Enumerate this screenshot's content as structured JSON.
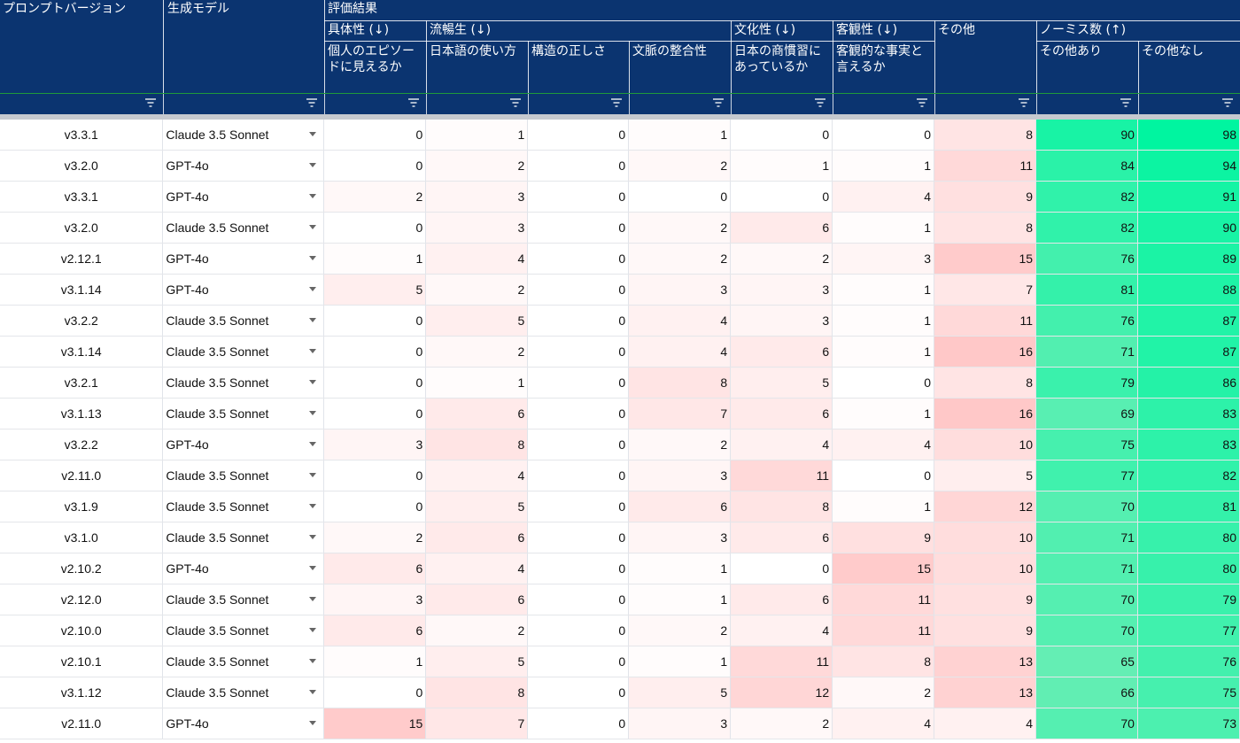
{
  "header": {
    "col_version": "プロンプトバージョン",
    "col_model": "生成モデル",
    "group_eval": "評価結果",
    "cat_specificity": "具体性 (↓)",
    "cat_fluency": "流暢生 (↓)",
    "cat_culture": "文化性 (↓)",
    "cat_objectivity": "客観性 (↓)",
    "cat_other": "その他",
    "cat_nomiss": "ノーミス数 (↑)",
    "sub_episode": "個人のエピソードに見えるか",
    "sub_japanese": "日本語の使い方",
    "sub_structure": "構造の正しさ",
    "sub_context": "文脈の整合性",
    "sub_business": "日本の商慣習にあっているか",
    "sub_fact": "客観的な事実と言えるか",
    "sub_with_other": "その他あり",
    "sub_without_other": "その他なし"
  },
  "colors": {
    "header_bg": "#0b3470",
    "red_scale_max": "#f9c4c4",
    "green_scale_low": "#5cf0b4",
    "green_scale_high": "#00f5a0"
  },
  "icons": {
    "filter": "filter-icon",
    "dropdown": "dropdown-arrow-icon"
  },
  "rows": [
    {
      "version": "v3.3.1",
      "model": "Claude 3.5 Sonnet",
      "episode": 0,
      "japanese": 1,
      "structure": 0,
      "context": 1,
      "business": 0,
      "fact": 0,
      "other": 8,
      "with_other": 90,
      "without_other": 98
    },
    {
      "version": "v3.2.0",
      "model": "GPT-4o",
      "episode": 0,
      "japanese": 2,
      "structure": 0,
      "context": 2,
      "business": 1,
      "fact": 1,
      "other": 11,
      "with_other": 84,
      "without_other": 94
    },
    {
      "version": "v3.3.1",
      "model": "GPT-4o",
      "episode": 2,
      "japanese": 3,
      "structure": 0,
      "context": 0,
      "business": 0,
      "fact": 4,
      "other": 9,
      "with_other": 82,
      "without_other": 91
    },
    {
      "version": "v3.2.0",
      "model": "Claude 3.5 Sonnet",
      "episode": 0,
      "japanese": 3,
      "structure": 0,
      "context": 2,
      "business": 6,
      "fact": 1,
      "other": 8,
      "with_other": 82,
      "without_other": 90
    },
    {
      "version": "v2.12.1",
      "model": "GPT-4o",
      "episode": 1,
      "japanese": 4,
      "structure": 0,
      "context": 2,
      "business": 2,
      "fact": 3,
      "other": 15,
      "with_other": 76,
      "without_other": 89
    },
    {
      "version": "v3.1.14",
      "model": "GPT-4o",
      "episode": 5,
      "japanese": 2,
      "structure": 0,
      "context": 3,
      "business": 3,
      "fact": 1,
      "other": 7,
      "with_other": 81,
      "without_other": 88
    },
    {
      "version": "v3.2.2",
      "model": "Claude 3.5 Sonnet",
      "episode": 0,
      "japanese": 5,
      "structure": 0,
      "context": 4,
      "business": 3,
      "fact": 1,
      "other": 11,
      "with_other": 76,
      "without_other": 87
    },
    {
      "version": "v3.1.14",
      "model": "Claude 3.5 Sonnet",
      "episode": 0,
      "japanese": 2,
      "structure": 0,
      "context": 4,
      "business": 6,
      "fact": 1,
      "other": 16,
      "with_other": 71,
      "without_other": 87
    },
    {
      "version": "v3.2.1",
      "model": "Claude 3.5 Sonnet",
      "episode": 0,
      "japanese": 1,
      "structure": 0,
      "context": 8,
      "business": 5,
      "fact": 0,
      "other": 8,
      "with_other": 79,
      "without_other": 86
    },
    {
      "version": "v3.1.13",
      "model": "Claude 3.5 Sonnet",
      "episode": 0,
      "japanese": 6,
      "structure": 0,
      "context": 7,
      "business": 6,
      "fact": 1,
      "other": 16,
      "with_other": 69,
      "without_other": 83
    },
    {
      "version": "v3.2.2",
      "model": "GPT-4o",
      "episode": 3,
      "japanese": 8,
      "structure": 0,
      "context": 2,
      "business": 4,
      "fact": 4,
      "other": 10,
      "with_other": 75,
      "without_other": 83
    },
    {
      "version": "v2.11.0",
      "model": "Claude 3.5 Sonnet",
      "episode": 0,
      "japanese": 4,
      "structure": 0,
      "context": 3,
      "business": 11,
      "fact": 0,
      "other": 5,
      "with_other": 77,
      "without_other": 82
    },
    {
      "version": "v3.1.9",
      "model": "Claude 3.5 Sonnet",
      "episode": 0,
      "japanese": 5,
      "structure": 0,
      "context": 6,
      "business": 8,
      "fact": 1,
      "other": 12,
      "with_other": 70,
      "without_other": 81
    },
    {
      "version": "v3.1.0",
      "model": "Claude 3.5 Sonnet",
      "episode": 2,
      "japanese": 6,
      "structure": 0,
      "context": 3,
      "business": 6,
      "fact": 9,
      "other": 10,
      "with_other": 71,
      "without_other": 80
    },
    {
      "version": "v2.10.2",
      "model": "GPT-4o",
      "episode": 6,
      "japanese": 4,
      "structure": 0,
      "context": 1,
      "business": 0,
      "fact": 15,
      "other": 10,
      "with_other": 71,
      "without_other": 80
    },
    {
      "version": "v2.12.0",
      "model": "Claude 3.5 Sonnet",
      "episode": 3,
      "japanese": 6,
      "structure": 0,
      "context": 1,
      "business": 6,
      "fact": 11,
      "other": 9,
      "with_other": 70,
      "without_other": 79
    },
    {
      "version": "v2.10.0",
      "model": "Claude 3.5 Sonnet",
      "episode": 6,
      "japanese": 2,
      "structure": 0,
      "context": 2,
      "business": 4,
      "fact": 11,
      "other": 9,
      "with_other": 70,
      "without_other": 77
    },
    {
      "version": "v2.10.1",
      "model": "Claude 3.5 Sonnet",
      "episode": 1,
      "japanese": 5,
      "structure": 0,
      "context": 1,
      "business": 11,
      "fact": 8,
      "other": 13,
      "with_other": 65,
      "without_other": 76
    },
    {
      "version": "v3.1.12",
      "model": "Claude 3.5 Sonnet",
      "episode": 0,
      "japanese": 8,
      "structure": 0,
      "context": 5,
      "business": 12,
      "fact": 2,
      "other": 13,
      "with_other": 66,
      "without_other": 75
    },
    {
      "version": "v2.11.0",
      "model": "GPT-4o",
      "episode": 15,
      "japanese": 7,
      "structure": 0,
      "context": 3,
      "business": 2,
      "fact": 4,
      "other": 4,
      "with_other": 70,
      "without_other": 73
    }
  ]
}
